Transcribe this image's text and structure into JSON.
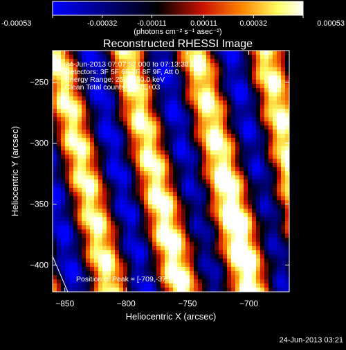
{
  "chart_data": {
    "type": "heatmap",
    "title": "Reconstructed RHESSI Image",
    "xlabel": "Heliocentric X (arcsec)",
    "ylabel": "Heliocentric Y (arcsec)",
    "xlim": [
      -860,
      -667
    ],
    "ylim": [
      -422,
      -224
    ],
    "x_ticks": [
      -850,
      -800,
      -750,
      -700
    ],
    "y_ticks": [
      -400,
      -350,
      -300,
      -250
    ],
    "colorbar": {
      "min": -0.00053,
      "max": 0.00053,
      "tick_values": [
        -0.00053,
        -0.00032,
        -0.00011,
        0.00011,
        0.00032,
        0.00053
      ],
      "tick_labels": [
        "-0.00053",
        "-0.00032",
        "-0.00011",
        "0.00011",
        "0.00032",
        "0.00053"
      ],
      "unit_label": "(photons cm⁻² s⁻¹ asec⁻²)"
    },
    "annotations": {
      "time_range": "24-Jun-2013 07:07:52.000 to 07:13:38.000",
      "detectors": "Detectors: 3F 5F 6F 7F 8F 9F, Att 0",
      "energy": "Energy Range: 25.0 - 50.0 keV",
      "method": "Clean    Total counts: 7.47E+03",
      "peak": "Position of Peak = [-709,-375]"
    },
    "peak_position": [
      -709,
      -375
    ],
    "pattern": {
      "description_values": "bright diagonal stripes",
      "stripe_slope_dx_per_dy": 0.23,
      "stripe_period_x": 57
    },
    "colors": [
      "#0000ff",
      "#000000",
      "#cc1100",
      "#ff8800",
      "#ffff66",
      "#ffffff"
    ]
  },
  "footer": {
    "timestamp": "24-Jun-2013 03:21"
  }
}
